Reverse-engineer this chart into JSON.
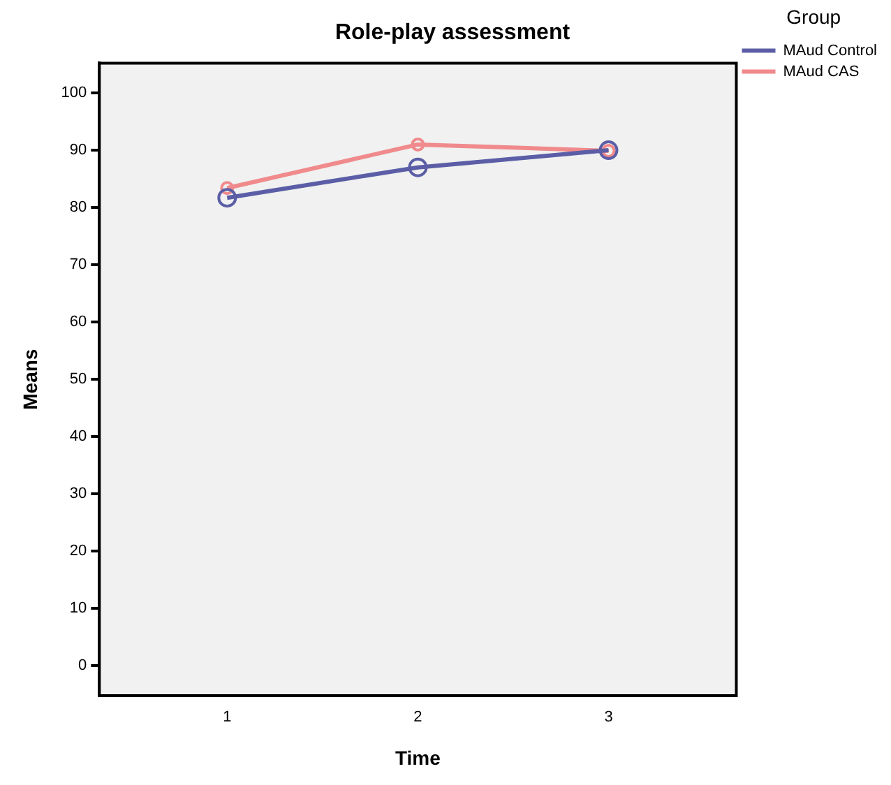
{
  "chart_data": {
    "type": "line",
    "title": "Role-play assessment",
    "xlabel": "Time",
    "ylabel": "Means",
    "legend_title": "Group",
    "x": [
      1,
      2,
      3
    ],
    "xlim": [
      0.33,
      3.67
    ],
    "xticks": [
      1,
      2,
      3
    ],
    "ylim": [
      -5.2,
      105.2
    ],
    "yticks": [
      0,
      10,
      20,
      30,
      40,
      50,
      60,
      70,
      80,
      90,
      100
    ],
    "series": [
      {
        "name": "MAud Control",
        "color": "#5b5ea6",
        "values": [
          81.7,
          87.0,
          90.0
        ]
      },
      {
        "name": "MAud CAS",
        "color": "#f08a8c",
        "values": [
          83.4,
          91.0,
          89.9
        ]
      }
    ],
    "marker": "circle",
    "line_style": "solid",
    "grid": false,
    "legend": "top right"
  }
}
